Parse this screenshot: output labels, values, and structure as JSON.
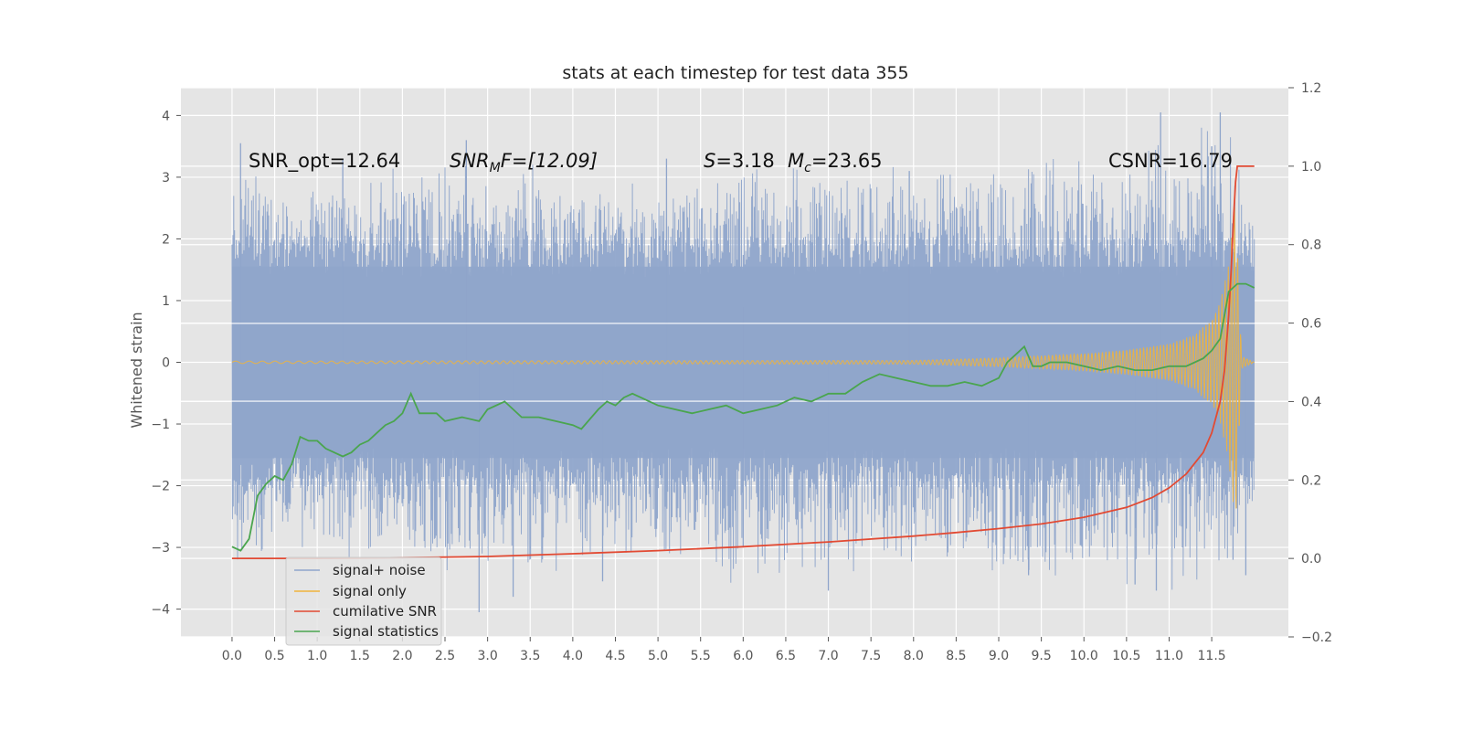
{
  "chart_data": {
    "type": "line",
    "title": "stats at each timestep for test data 355",
    "ylabel": "Whitened strain",
    "xlabel": "",
    "xlim": [
      -0.6,
      12.4
    ],
    "ylim": [
      -4.45,
      4.45
    ],
    "y2lim": [
      -0.2,
      1.2
    ],
    "xticks": [
      "0.0",
      "0.5",
      "1.0",
      "1.5",
      "2.0",
      "2.5",
      "3.0",
      "3.5",
      "4.0",
      "4.5",
      "5.0",
      "5.5",
      "6.0",
      "6.5",
      "7.0",
      "7.5",
      "8.0",
      "8.5",
      "9.0",
      "9.5",
      "10.0",
      "10.5",
      "11.0",
      "11.5"
    ],
    "yticks": [
      "4",
      "3",
      "2",
      "1",
      "0",
      "−1",
      "−2",
      "−3",
      "−4"
    ],
    "y2ticks": [
      "1.2",
      "1.0",
      "0.8",
      "0.6",
      "0.4",
      "0.2",
      "0.0",
      "−0.2"
    ],
    "grid": true,
    "legend_position": "lower-left",
    "annotations": {
      "snr_opt": "SNR_opt=12.64",
      "snr_mf_main": "SNR",
      "snr_mf_sub": "M",
      "snr_mf_rest": "F=[12.09]",
      "s_main": "S",
      "s_rest": "=3.18",
      "mc_main": "M",
      "mc_sub": "c",
      "mc_rest": "=23.65",
      "csnr": "CSNR=16.79"
    },
    "series": [
      {
        "name": "signal+ noise",
        "color": "#8fa5cb",
        "axis": "left",
        "x_range": [
          0.0,
          12.0
        ],
        "envelope_x": [
          0.0,
          1.0,
          2.0,
          3.0,
          4.0,
          5.0,
          6.0,
          7.0,
          8.0,
          9.0,
          10.0,
          11.0,
          11.5,
          11.8,
          12.0
        ],
        "envelope_upper": [
          3.2,
          2.9,
          3.1,
          3.2,
          3.0,
          2.9,
          3.1,
          3.0,
          3.0,
          3.2,
          3.3,
          3.6,
          3.8,
          3.6,
          2.2
        ],
        "envelope_lower": [
          -3.1,
          -3.0,
          -3.3,
          -3.3,
          -3.3,
          -3.1,
          -3.5,
          -3.3,
          -3.2,
          -3.4,
          -3.4,
          -3.6,
          -3.8,
          -3.3,
          -2.8
        ],
        "band": [
          -1.8,
          1.8
        ],
        "spikes": [
          [
            0.1,
            3.55
          ],
          [
            1.3,
            3.3
          ],
          [
            2.75,
            3.6
          ],
          [
            2.9,
            -4.05
          ],
          [
            3.3,
            -3.8
          ],
          [
            4.35,
            -3.55
          ],
          [
            5.1,
            3.3
          ],
          [
            6.0,
            0.9
          ],
          [
            6.0,
            -3.0
          ],
          [
            7.0,
            -3.7
          ],
          [
            7.95,
            3.1
          ],
          [
            9.35,
            -3.45
          ],
          [
            10.6,
            -3.6
          ],
          [
            10.9,
            4.05
          ],
          [
            10.85,
            -3.7
          ],
          [
            11.5,
            3.5
          ],
          [
            11.6,
            4.05
          ],
          [
            11.75,
            -3.2
          ],
          [
            11.9,
            -3.45
          ]
        ]
      },
      {
        "name": "signal only",
        "color": "#f0b43c",
        "axis": "left",
        "chirp_x": [
          0.0,
          8.0,
          9.0,
          10.0,
          10.5,
          11.0,
          11.3,
          11.5,
          11.6,
          11.7,
          11.78,
          11.85,
          12.0
        ],
        "chirp_amp": [
          0.02,
          0.03,
          0.07,
          0.14,
          0.2,
          0.3,
          0.45,
          0.7,
          1.0,
          1.6,
          2.7,
          0.1,
          0.0
        ]
      },
      {
        "name": "cumilative SNR",
        "color": "#e24a33",
        "axis": "right",
        "x": [
          0.0,
          1.0,
          2.0,
          3.0,
          4.0,
          5.0,
          6.0,
          7.0,
          8.0,
          8.5,
          9.0,
          9.5,
          10.0,
          10.5,
          10.8,
          11.0,
          11.2,
          11.4,
          11.5,
          11.6,
          11.65,
          11.7,
          11.73,
          11.76,
          11.78,
          11.8,
          12.0
        ],
        "y": [
          0.0,
          0.0,
          0.002,
          0.005,
          0.012,
          0.02,
          0.03,
          0.042,
          0.057,
          0.066,
          0.076,
          0.088,
          0.105,
          0.13,
          0.155,
          0.18,
          0.215,
          0.27,
          0.32,
          0.4,
          0.48,
          0.62,
          0.74,
          0.88,
          0.96,
          1.0,
          1.0
        ]
      },
      {
        "name": "signal statistics",
        "color": "#4aa54e",
        "axis": "right",
        "x": [
          0.0,
          0.1,
          0.2,
          0.3,
          0.4,
          0.5,
          0.6,
          0.7,
          0.8,
          0.9,
          1.0,
          1.1,
          1.2,
          1.3,
          1.4,
          1.5,
          1.6,
          1.7,
          1.8,
          1.9,
          2.0,
          2.1,
          2.2,
          2.4,
          2.5,
          2.7,
          2.9,
          3.0,
          3.2,
          3.4,
          3.6,
          3.8,
          4.0,
          4.1,
          4.3,
          4.4,
          4.5,
          4.6,
          4.7,
          4.8,
          4.9,
          5.0,
          5.2,
          5.4,
          5.6,
          5.8,
          6.0,
          6.2,
          6.4,
          6.6,
          6.8,
          7.0,
          7.2,
          7.4,
          7.6,
          7.8,
          8.0,
          8.2,
          8.4,
          8.6,
          8.8,
          9.0,
          9.1,
          9.2,
          9.3,
          9.4,
          9.5,
          9.6,
          9.8,
          10.0,
          10.2,
          10.4,
          10.6,
          10.8,
          11.0,
          11.2,
          11.4,
          11.5,
          11.6,
          11.7,
          11.8,
          11.9,
          12.0
        ],
        "y": [
          0.03,
          0.02,
          0.05,
          0.16,
          0.19,
          0.21,
          0.2,
          0.24,
          0.31,
          0.3,
          0.3,
          0.28,
          0.27,
          0.26,
          0.27,
          0.29,
          0.3,
          0.32,
          0.34,
          0.35,
          0.37,
          0.42,
          0.37,
          0.37,
          0.35,
          0.36,
          0.35,
          0.38,
          0.4,
          0.36,
          0.36,
          0.35,
          0.34,
          0.33,
          0.38,
          0.4,
          0.39,
          0.41,
          0.42,
          0.41,
          0.4,
          0.39,
          0.38,
          0.37,
          0.38,
          0.39,
          0.37,
          0.38,
          0.39,
          0.41,
          0.4,
          0.42,
          0.42,
          0.45,
          0.47,
          0.46,
          0.45,
          0.44,
          0.44,
          0.45,
          0.44,
          0.46,
          0.5,
          0.52,
          0.54,
          0.49,
          0.49,
          0.5,
          0.5,
          0.49,
          0.48,
          0.49,
          0.48,
          0.48,
          0.49,
          0.49,
          0.51,
          0.53,
          0.56,
          0.68,
          0.7,
          0.7,
          0.69
        ]
      }
    ]
  }
}
